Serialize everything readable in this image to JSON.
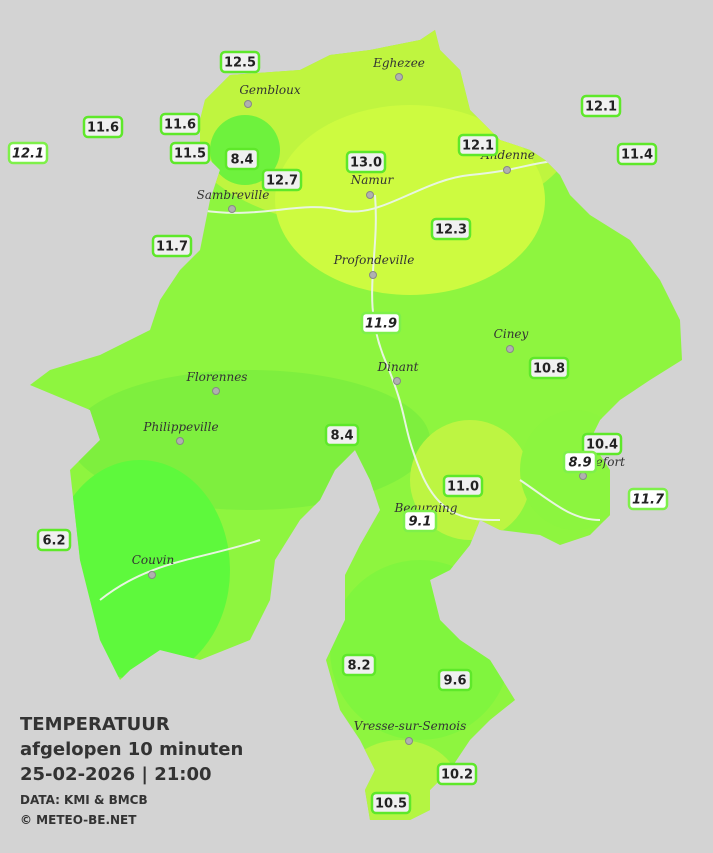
{
  "legend": {
    "title": "TEMPERATUUR",
    "subtitle": "afgelopen 10 minuten",
    "datetime": "25-02-2026  |  21:00",
    "source": "DATA: KMI & BMCB",
    "copyright": "© METEO-BE.NET"
  },
  "cities": [
    "Eghezee",
    "Gembloux",
    "Andenne",
    "Namur",
    "Sambreville",
    "Profondeville",
    "Ciney",
    "Dinant",
    "Florennes",
    "Philippeville",
    "Rochefort",
    "Beauraing",
    "Couvin",
    "Vresse-sur-Semois"
  ],
  "stations": [
    {
      "value": "12.5",
      "italic": false
    },
    {
      "value": "11.6",
      "italic": false
    },
    {
      "value": "11.6",
      "italic": false
    },
    {
      "value": "12.1",
      "italic": true
    },
    {
      "value": "11.5",
      "italic": false
    },
    {
      "value": "8.4",
      "italic": false
    },
    {
      "value": "12.7",
      "italic": false
    },
    {
      "value": "13.0",
      "italic": false
    },
    {
      "value": "12.1",
      "italic": false
    },
    {
      "value": "12.1",
      "italic": false
    },
    {
      "value": "11.4",
      "italic": false
    },
    {
      "value": "12.3",
      "italic": false
    },
    {
      "value": "11.7",
      "italic": false
    },
    {
      "value": "11.9",
      "italic": true
    },
    {
      "value": "10.8",
      "italic": false
    },
    {
      "value": "8.4",
      "italic": false
    },
    {
      "value": "10.4",
      "italic": false
    },
    {
      "value": "8.9",
      "italic": true
    },
    {
      "value": "11.0",
      "italic": false
    },
    {
      "value": "11.7",
      "italic": true
    },
    {
      "value": "9.1",
      "italic": true
    },
    {
      "value": "6.2",
      "italic": false
    },
    {
      "value": "8.2",
      "italic": false
    },
    {
      "value": "9.6",
      "italic": false
    },
    {
      "value": "10.2",
      "italic": false
    },
    {
      "value": "10.5",
      "italic": false
    }
  ]
}
